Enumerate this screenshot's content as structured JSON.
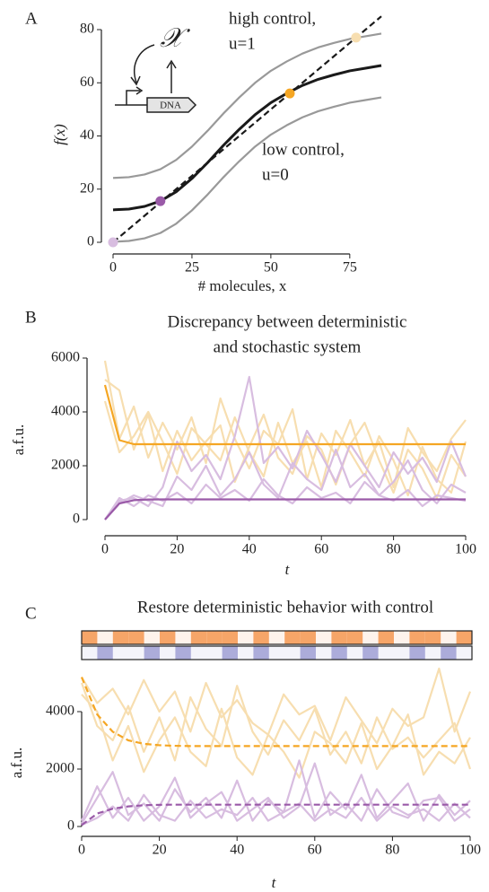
{
  "chart_data": [
    {
      "type": "line",
      "panel": "A",
      "xlabel": "# molecules, x",
      "ylabel": "f(x)",
      "xlim": [
        0,
        85
      ],
      "ylim": [
        0,
        85
      ],
      "xticks": [
        0,
        25,
        50,
        75
      ],
      "yticks": [
        0,
        20,
        40,
        60,
        80
      ],
      "x": [
        0,
        5,
        10,
        15,
        20,
        25,
        30,
        35,
        40,
        45,
        50,
        55,
        60,
        65,
        70,
        75,
        80,
        85
      ],
      "series": [
        {
          "color": "#999999",
          "values": [
            24.2,
            24.5,
            25.5,
            27.5,
            31,
            36,
            42,
            48.5,
            54.5,
            60,
            64.5,
            68,
            71,
            73.3,
            75,
            76.5,
            77.5,
            78.5
          ]
        },
        {
          "color": "#999999",
          "values": [
            0.2,
            0.5,
            1.5,
            3.5,
            7,
            12,
            18,
            24.5,
            30.5,
            36,
            40.5,
            44,
            47,
            49.3,
            51,
            52.5,
            53.5,
            54.5
          ]
        },
        {
          "color": "#1a1a1a",
          "values": [
            12.2,
            12.5,
            13.5,
            15.5,
            19,
            24,
            30,
            36.5,
            42.5,
            48,
            52.5,
            56,
            59,
            61.3,
            63,
            64.5,
            65.5,
            66.5
          ]
        },
        {
          "color": "#1a1a1a",
          "dash": true,
          "values": [
            0,
            5,
            10,
            15,
            20,
            25,
            30,
            35,
            40,
            45,
            50,
            55,
            60,
            65,
            70,
            75,
            80,
            85
          ]
        }
      ],
      "points": {
        "x": [
          0,
          15,
          56,
          77
        ],
        "values": [
          0,
          15.5,
          56,
          77
        ],
        "colors": [
          "#d8bde0",
          "#9a5aa8",
          "#f5a623",
          "#f7deb0"
        ]
      },
      "annotations": [
        "high control,",
        "u=1",
        "low control,",
        "u=0"
      ],
      "inset": {
        "species": "𝒳",
        "gene": "DNA"
      }
    },
    {
      "type": "line",
      "panel": "B",
      "title": [
        "Discrepancy between deterministic",
        "and stochastic system"
      ],
      "xlabel": "t",
      "ylabel": "a.f.u.",
      "xlim": [
        0,
        100
      ],
      "ylim": [
        -200,
        6300
      ],
      "xticks": [
        0,
        20,
        40,
        60,
        80,
        100
      ],
      "yticks": [
        0,
        2000,
        4000,
        6000
      ],
      "x": [
        0,
        4,
        8,
        12,
        16,
        20,
        24,
        28,
        32,
        36,
        40,
        44,
        48,
        52,
        56,
        60,
        64,
        68,
        72,
        76,
        80,
        84,
        88,
        92,
        96,
        100
      ],
      "series": [
        {
          "color": "#f7deb0",
          "values": [
            5900,
            3000,
            4200,
            2300,
            3600,
            2600,
            3800,
            2100,
            4500,
            3000,
            1900,
            3300,
            2800,
            4100,
            1500,
            3200,
            2400,
            3700,
            2000,
            2900,
            1200,
            3400,
            2500,
            1800,
            3000,
            3700
          ]
        },
        {
          "color": "#f7deb0",
          "values": [
            5200,
            4800,
            2600,
            3900,
            1800,
            3300,
            2200,
            2900,
            3500,
            1400,
            2700,
            3900,
            2300,
            1700,
            3100,
            2600,
            1300,
            2800,
            3600,
            2200,
            1000,
            2600,
            1900,
            800,
            2400,
            1600
          ]
        },
        {
          "color": "#f7deb0",
          "values": [
            4400,
            2500,
            3100,
            4000,
            2900,
            1700,
            3400,
            2800,
            2200,
            3800,
            2500,
            1600,
            3600,
            2100,
            2900,
            1200,
            3300,
            2500,
            1600,
            3100,
            2200,
            900,
            2700,
            1500,
            1000,
            2900
          ]
        },
        {
          "color": "#d8bde0",
          "values": [
            0,
            700,
            800,
            500,
            1200,
            2900,
            1800,
            2400,
            1500,
            3100,
            5300,
            2100,
            2700,
            1900,
            3300,
            2400,
            1400,
            2800,
            2000,
            1200,
            2500,
            1700,
            2300,
            1400,
            2900,
            1600
          ]
        },
        {
          "color": "#d8bde0",
          "values": [
            0,
            600,
            900,
            700,
            500,
            1600,
            1100,
            2000,
            900,
            1500,
            2500,
            1300,
            800,
            2100,
            1500,
            1100,
            2600,
            1200,
            1700,
            900,
            1400,
            2200,
            1100,
            600,
            1300,
            1000
          ]
        },
        {
          "color": "#d8bde0",
          "values": [
            0,
            800,
            500,
            900,
            700,
            1000,
            600,
            1300,
            800,
            1100,
            700,
            1500,
            900,
            600,
            1200,
            800,
            1000,
            600,
            1400,
            900,
            700,
            1100,
            500,
            900,
            800,
            700
          ]
        },
        {
          "color": "#f5a623",
          "values": [
            5000,
            2950,
            2800,
            2800,
            2800,
            2800,
            2800,
            2800,
            2800,
            2800,
            2800,
            2800,
            2800,
            2800,
            2800,
            2800,
            2800,
            2800,
            2800,
            2800,
            2800,
            2800,
            2800,
            2800,
            2800,
            2800
          ]
        },
        {
          "color": "#9a5aa8",
          "values": [
            0,
            600,
            720,
            745,
            750,
            750,
            750,
            750,
            750,
            750,
            750,
            750,
            750,
            750,
            750,
            750,
            750,
            750,
            750,
            750,
            750,
            750,
            750,
            750,
            750,
            750
          ]
        }
      ]
    },
    {
      "type": "line",
      "panel": "C",
      "title": [
        "Restore deterministic behavior with control"
      ],
      "xlabel": "t",
      "ylabel": "a.f.u.",
      "xlim": [
        0,
        100
      ],
      "ylim": [
        -300,
        5700
      ],
      "xticks": [
        0,
        20,
        40,
        60,
        80,
        100
      ],
      "yticks": [
        0,
        2000,
        4000
      ],
      "x": [
        0,
        4,
        8,
        12,
        16,
        20,
        24,
        28,
        32,
        36,
        40,
        44,
        48,
        52,
        56,
        60,
        64,
        68,
        72,
        76,
        80,
        84,
        88,
        92,
        96,
        100
      ],
      "control": [
        {
          "color": "#f5a060",
          "values": [
            1,
            0,
            1,
            1,
            0,
            1,
            0,
            1,
            1,
            1,
            0,
            1,
            0,
            1,
            1,
            0,
            1,
            1,
            0,
            1,
            0,
            1,
            1,
            0,
            1
          ]
        },
        {
          "color": "#a8a8d8",
          "values": [
            0,
            1,
            0,
            0,
            1,
            0,
            1,
            0,
            0,
            1,
            0,
            1,
            0,
            0,
            1,
            0,
            1,
            0,
            1,
            0,
            0,
            1,
            0,
            1,
            0
          ]
        }
      ],
      "series": [
        {
          "color": "#f7deb0",
          "values": [
            5200,
            4300,
            4800,
            3900,
            5100,
            4000,
            4700,
            3300,
            5000,
            3800,
            4400,
            3600,
            3200,
            4600,
            3900,
            4200,
            3000,
            4500,
            3700,
            2900,
            4100,
            3500,
            3800,
            5500,
            3300,
            4700
          ]
        },
        {
          "color": "#f7deb0",
          "values": [
            5000,
            3500,
            3000,
            4200,
            2600,
            3800,
            2300,
            4500,
            3400,
            2800,
            4900,
            3300,
            2500,
            3700,
            3000,
            4100,
            2500,
            3300,
            2200,
            3800,
            2700,
            3100,
            2400,
            3000,
            3600,
            2000
          ]
        },
        {
          "color": "#f7deb0",
          "values": [
            4600,
            4000,
            2300,
            3500,
            1900,
            3000,
            3800,
            2600,
            2100,
            4100,
            2400,
            1800,
            3200,
            2600,
            1700,
            3300,
            2900,
            2200,
            3600,
            2000,
            2800,
            3900,
            1800,
            2600,
            2200,
            3100
          ]
        },
        {
          "color": "#d8bde0",
          "values": [
            100,
            1000,
            1900,
            400,
            800,
            200,
            1300,
            500,
            1000,
            300,
            1600,
            200,
            900,
            500,
            2300,
            300,
            1200,
            600,
            1800,
            300,
            900,
            1500,
            200,
            1100,
            400,
            900
          ]
        },
        {
          "color": "#d8bde0",
          "values": [
            200,
            1400,
            300,
            1000,
            200,
            700,
            1700,
            300,
            800,
            1200,
            200,
            600,
            1000,
            300,
            700,
            2200,
            400,
            800,
            200,
            1300,
            500,
            300,
            900,
            1000,
            200,
            600
          ]
        },
        {
          "color": "#d8bde0",
          "values": [
            50,
            300,
            700,
            200,
            1100,
            400,
            200,
            900,
            300,
            600,
            400,
            1000,
            200,
            500,
            800,
            200,
            600,
            300,
            1000,
            200,
            700,
            400,
            600,
            200,
            800,
            300
          ]
        },
        {
          "color": "#f5a623",
          "dash": true,
          "values": [
            5200,
            3900,
            3300,
            3000,
            2880,
            2830,
            2810,
            2800,
            2800,
            2800,
            2800,
            2800,
            2800,
            2800,
            2800,
            2800,
            2800,
            2800,
            2800,
            2800,
            2800,
            2800,
            2800,
            2800,
            2800,
            2800
          ]
        },
        {
          "color": "#9a5aa8",
          "dash": true,
          "values": [
            50,
            450,
            620,
            700,
            740,
            755,
            760,
            760,
            760,
            760,
            760,
            760,
            760,
            760,
            760,
            760,
            760,
            760,
            760,
            760,
            760,
            760,
            760,
            760,
            760,
            760
          ]
        }
      ]
    }
  ]
}
